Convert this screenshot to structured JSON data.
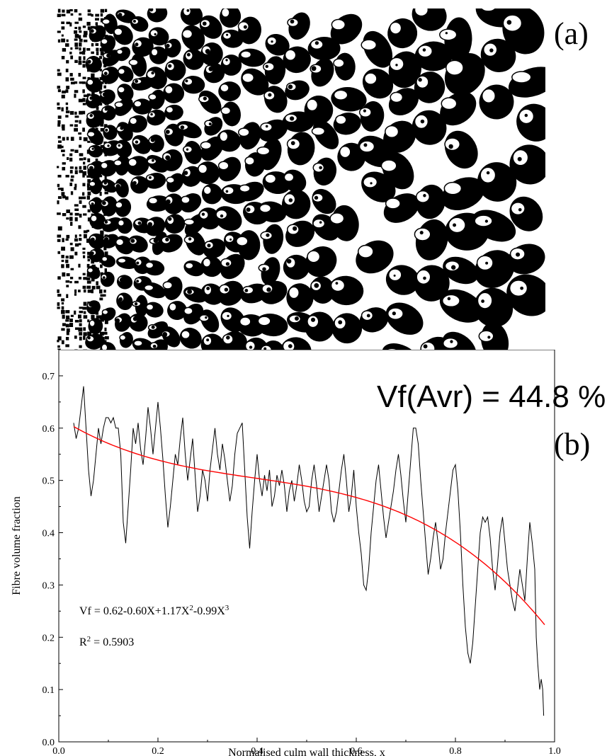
{
  "panel_a": {
    "label": "(a)",
    "image": "binarised bamboo culm cross-section micrograph"
  },
  "panel_b": {
    "label": "(b)",
    "average_text": "Vf(Avr) = 44.8 %",
    "equation_parts": [
      "Vf = 0.62-0.60X+1.17X",
      "2",
      "-0.99X",
      "3"
    ],
    "r2_parts": [
      "R",
      "2",
      " = 0.5903"
    ]
  },
  "colors": {
    "measured": "#000000",
    "fit": "#ff0000",
    "background": "#ffffff"
  },
  "chart_data": {
    "type": "line",
    "xlabel": "Normalised culm wall thickness, x",
    "ylabel": "Fibre volume fraction",
    "xlim": [
      0.0,
      1.0
    ],
    "ylim": [
      0.0,
      0.75
    ],
    "x_ticks": [
      "0.0",
      "0.2",
      "0.4",
      "0.6",
      "0.8",
      "1.0"
    ],
    "y_ticks": [
      "0.0",
      "0.1",
      "0.2",
      "0.3",
      "0.4",
      "0.5",
      "0.6",
      "0.7"
    ],
    "grid": false,
    "series": [
      {
        "role": "measured",
        "color": "#000000",
        "points": [
          [
            0.03,
            0.61
          ],
          [
            0.035,
            0.58
          ],
          [
            0.04,
            0.6
          ],
          [
            0.045,
            0.64
          ],
          [
            0.05,
            0.68
          ],
          [
            0.055,
            0.6
          ],
          [
            0.06,
            0.52
          ],
          [
            0.065,
            0.47
          ],
          [
            0.07,
            0.5
          ],
          [
            0.075,
            0.55
          ],
          [
            0.08,
            0.6
          ],
          [
            0.085,
            0.57
          ],
          [
            0.09,
            0.6
          ],
          [
            0.095,
            0.62
          ],
          [
            0.1,
            0.62
          ],
          [
            0.105,
            0.61
          ],
          [
            0.11,
            0.62
          ],
          [
            0.115,
            0.6
          ],
          [
            0.12,
            0.6
          ],
          [
            0.125,
            0.55
          ],
          [
            0.13,
            0.42
          ],
          [
            0.135,
            0.38
          ],
          [
            0.14,
            0.45
          ],
          [
            0.145,
            0.52
          ],
          [
            0.15,
            0.6
          ],
          [
            0.155,
            0.57
          ],
          [
            0.16,
            0.61
          ],
          [
            0.165,
            0.56
          ],
          [
            0.17,
            0.53
          ],
          [
            0.175,
            0.58
          ],
          [
            0.18,
            0.64
          ],
          [
            0.185,
            0.6
          ],
          [
            0.19,
            0.55
          ],
          [
            0.195,
            0.6
          ],
          [
            0.2,
            0.65
          ],
          [
            0.205,
            0.6
          ],
          [
            0.21,
            0.54
          ],
          [
            0.215,
            0.47
          ],
          [
            0.22,
            0.41
          ],
          [
            0.225,
            0.45
          ],
          [
            0.23,
            0.5
          ],
          [
            0.235,
            0.55
          ],
          [
            0.24,
            0.53
          ],
          [
            0.245,
            0.58
          ],
          [
            0.25,
            0.62
          ],
          [
            0.255,
            0.55
          ],
          [
            0.26,
            0.5
          ],
          [
            0.265,
            0.54
          ],
          [
            0.27,
            0.58
          ],
          [
            0.275,
            0.51
          ],
          [
            0.28,
            0.44
          ],
          [
            0.285,
            0.47
          ],
          [
            0.29,
            0.52
          ],
          [
            0.295,
            0.5
          ],
          [
            0.3,
            0.46
          ],
          [
            0.305,
            0.52
          ],
          [
            0.31,
            0.56
          ],
          [
            0.315,
            0.6
          ],
          [
            0.32,
            0.55
          ],
          [
            0.325,
            0.52
          ],
          [
            0.33,
            0.57
          ],
          [
            0.335,
            0.54
          ],
          [
            0.34,
            0.5
          ],
          [
            0.345,
            0.46
          ],
          [
            0.35,
            0.49
          ],
          [
            0.355,
            0.55
          ],
          [
            0.36,
            0.59
          ],
          [
            0.365,
            0.6
          ],
          [
            0.37,
            0.61
          ],
          [
            0.375,
            0.52
          ],
          [
            0.38,
            0.43
          ],
          [
            0.385,
            0.37
          ],
          [
            0.39,
            0.44
          ],
          [
            0.395,
            0.5
          ],
          [
            0.4,
            0.55
          ],
          [
            0.405,
            0.5
          ],
          [
            0.41,
            0.47
          ],
          [
            0.415,
            0.51
          ],
          [
            0.42,
            0.48
          ],
          [
            0.425,
            0.52
          ],
          [
            0.43,
            0.45
          ],
          [
            0.435,
            0.47
          ],
          [
            0.44,
            0.51
          ],
          [
            0.445,
            0.49
          ],
          [
            0.45,
            0.52
          ],
          [
            0.455,
            0.49
          ],
          [
            0.46,
            0.44
          ],
          [
            0.465,
            0.48
          ],
          [
            0.47,
            0.5
          ],
          [
            0.475,
            0.46
          ],
          [
            0.48,
            0.49
          ],
          [
            0.485,
            0.53
          ],
          [
            0.49,
            0.5
          ],
          [
            0.495,
            0.46
          ],
          [
            0.5,
            0.44
          ],
          [
            0.505,
            0.45
          ],
          [
            0.51,
            0.5
          ],
          [
            0.515,
            0.53
          ],
          [
            0.52,
            0.49
          ],
          [
            0.525,
            0.44
          ],
          [
            0.53,
            0.47
          ],
          [
            0.535,
            0.5
          ],
          [
            0.54,
            0.53
          ],
          [
            0.545,
            0.5
          ],
          [
            0.55,
            0.44
          ],
          [
            0.555,
            0.42
          ],
          [
            0.56,
            0.44
          ],
          [
            0.565,
            0.48
          ],
          [
            0.57,
            0.52
          ],
          [
            0.575,
            0.55
          ],
          [
            0.58,
            0.5
          ],
          [
            0.585,
            0.44
          ],
          [
            0.59,
            0.47
          ],
          [
            0.595,
            0.52
          ],
          [
            0.6,
            0.45
          ],
          [
            0.605,
            0.4
          ],
          [
            0.61,
            0.36
          ],
          [
            0.615,
            0.3
          ],
          [
            0.62,
            0.29
          ],
          [
            0.625,
            0.33
          ],
          [
            0.63,
            0.4
          ],
          [
            0.635,
            0.45
          ],
          [
            0.64,
            0.5
          ],
          [
            0.645,
            0.53
          ],
          [
            0.65,
            0.48
          ],
          [
            0.655,
            0.43
          ],
          [
            0.66,
            0.39
          ],
          [
            0.665,
            0.42
          ],
          [
            0.67,
            0.45
          ],
          [
            0.675,
            0.48
          ],
          [
            0.68,
            0.52
          ],
          [
            0.685,
            0.55
          ],
          [
            0.69,
            0.51
          ],
          [
            0.695,
            0.46
          ],
          [
            0.7,
            0.42
          ],
          [
            0.705,
            0.48
          ],
          [
            0.71,
            0.54
          ],
          [
            0.715,
            0.6
          ],
          [
            0.72,
            0.6
          ],
          [
            0.725,
            0.57
          ],
          [
            0.73,
            0.5
          ],
          [
            0.735,
            0.44
          ],
          [
            0.74,
            0.38
          ],
          [
            0.745,
            0.32
          ],
          [
            0.75,
            0.35
          ],
          [
            0.755,
            0.39
          ],
          [
            0.76,
            0.42
          ],
          [
            0.765,
            0.38
          ],
          [
            0.77,
            0.33
          ],
          [
            0.775,
            0.35
          ],
          [
            0.78,
            0.4
          ],
          [
            0.785,
            0.44
          ],
          [
            0.79,
            0.48
          ],
          [
            0.795,
            0.52
          ],
          [
            0.8,
            0.53
          ],
          [
            0.805,
            0.48
          ],
          [
            0.81,
            0.4
          ],
          [
            0.815,
            0.3
          ],
          [
            0.82,
            0.22
          ],
          [
            0.825,
            0.17
          ],
          [
            0.83,
            0.15
          ],
          [
            0.835,
            0.19
          ],
          [
            0.84,
            0.26
          ],
          [
            0.845,
            0.33
          ],
          [
            0.85,
            0.4
          ],
          [
            0.855,
            0.43
          ],
          [
            0.86,
            0.42
          ],
          [
            0.865,
            0.43
          ],
          [
            0.87,
            0.39
          ],
          [
            0.875,
            0.33
          ],
          [
            0.88,
            0.29
          ],
          [
            0.885,
            0.34
          ],
          [
            0.89,
            0.4
          ],
          [
            0.895,
            0.43
          ],
          [
            0.9,
            0.38
          ],
          [
            0.905,
            0.33
          ],
          [
            0.91,
            0.3
          ],
          [
            0.915,
            0.27
          ],
          [
            0.92,
            0.25
          ],
          [
            0.925,
            0.29
          ],
          [
            0.93,
            0.33
          ],
          [
            0.935,
            0.3
          ],
          [
            0.94,
            0.27
          ],
          [
            0.945,
            0.35
          ],
          [
            0.95,
            0.42
          ],
          [
            0.955,
            0.38
          ],
          [
            0.96,
            0.33
          ],
          [
            0.963,
            0.2
          ],
          [
            0.966,
            0.15
          ],
          [
            0.97,
            0.1
          ],
          [
            0.973,
            0.12
          ],
          [
            0.976,
            0.1
          ],
          [
            0.978,
            0.05
          ]
        ]
      },
      {
        "role": "fit",
        "color": "#ff0000",
        "equation_coefficients": [
          0.62,
          -0.6,
          1.17,
          -0.99
        ],
        "x_range": [
          0.03,
          0.98
        ]
      }
    ]
  }
}
